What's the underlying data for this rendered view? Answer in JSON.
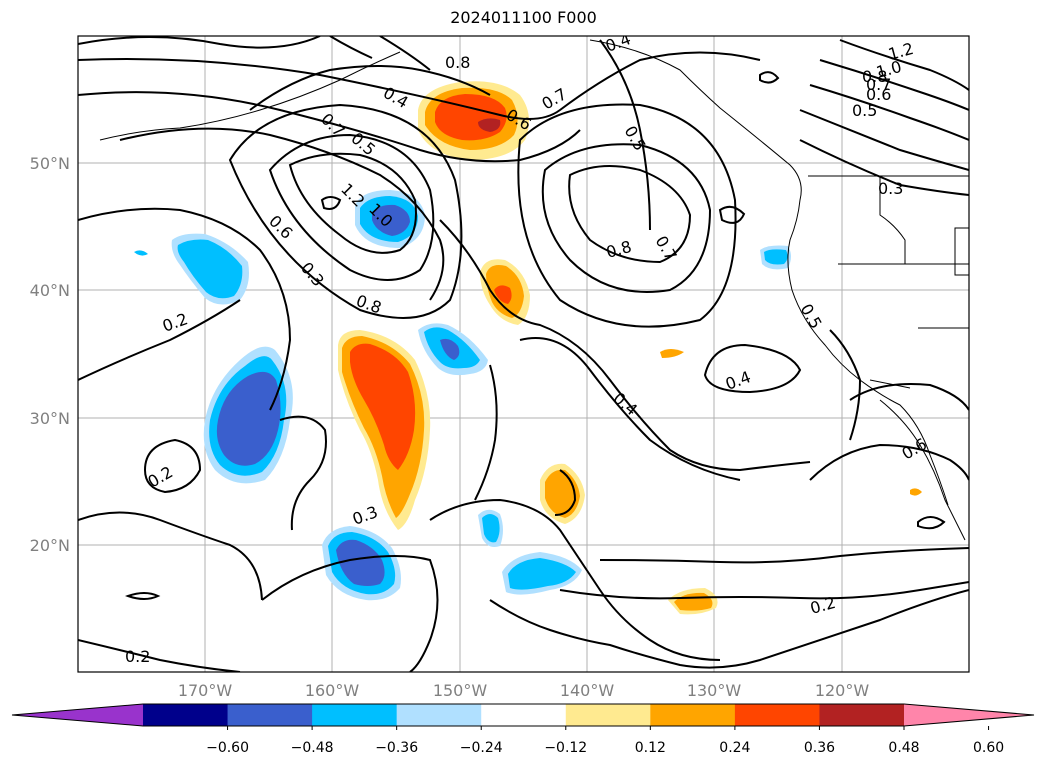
{
  "title": "2024011100 F000",
  "latitude_labels": [
    "50°N",
    "40°N",
    "30°N",
    "20°N"
  ],
  "longitude_labels": [
    "170°W",
    "160°W",
    "150°W",
    "140°W",
    "130°W",
    "120°W"
  ],
  "colorbar": {
    "tick_labels": [
      "−0.60",
      "−0.48",
      "−0.36",
      "−0.24",
      "−0.12",
      "0.12",
      "0.24",
      "0.36",
      "0.48",
      "0.60"
    ],
    "colors": [
      "#9933cc",
      "#00008b",
      "#3a5fcd",
      "#00bfff",
      "#b0e0ff",
      "#ffffff",
      "#ffea90",
      "#ffa500",
      "#ff4500",
      "#b22222",
      "#ff85aa"
    ]
  },
  "contour_labels": [
    "0.8",
    "0.4",
    "0.6",
    "0.7",
    "0.4",
    "1.2",
    "1.0",
    "0.8",
    "0.7",
    "0.6",
    "0.5",
    "0.7",
    "0.5",
    "1.2",
    "1.0",
    "0.5",
    "0.3",
    "0.3",
    "0.6",
    "0.5",
    "0.8",
    "0.8",
    "0.7",
    "0.2",
    "0.4",
    "0.4",
    "0.3",
    "0.2",
    "0.6",
    "0.2",
    "0.2"
  ]
}
